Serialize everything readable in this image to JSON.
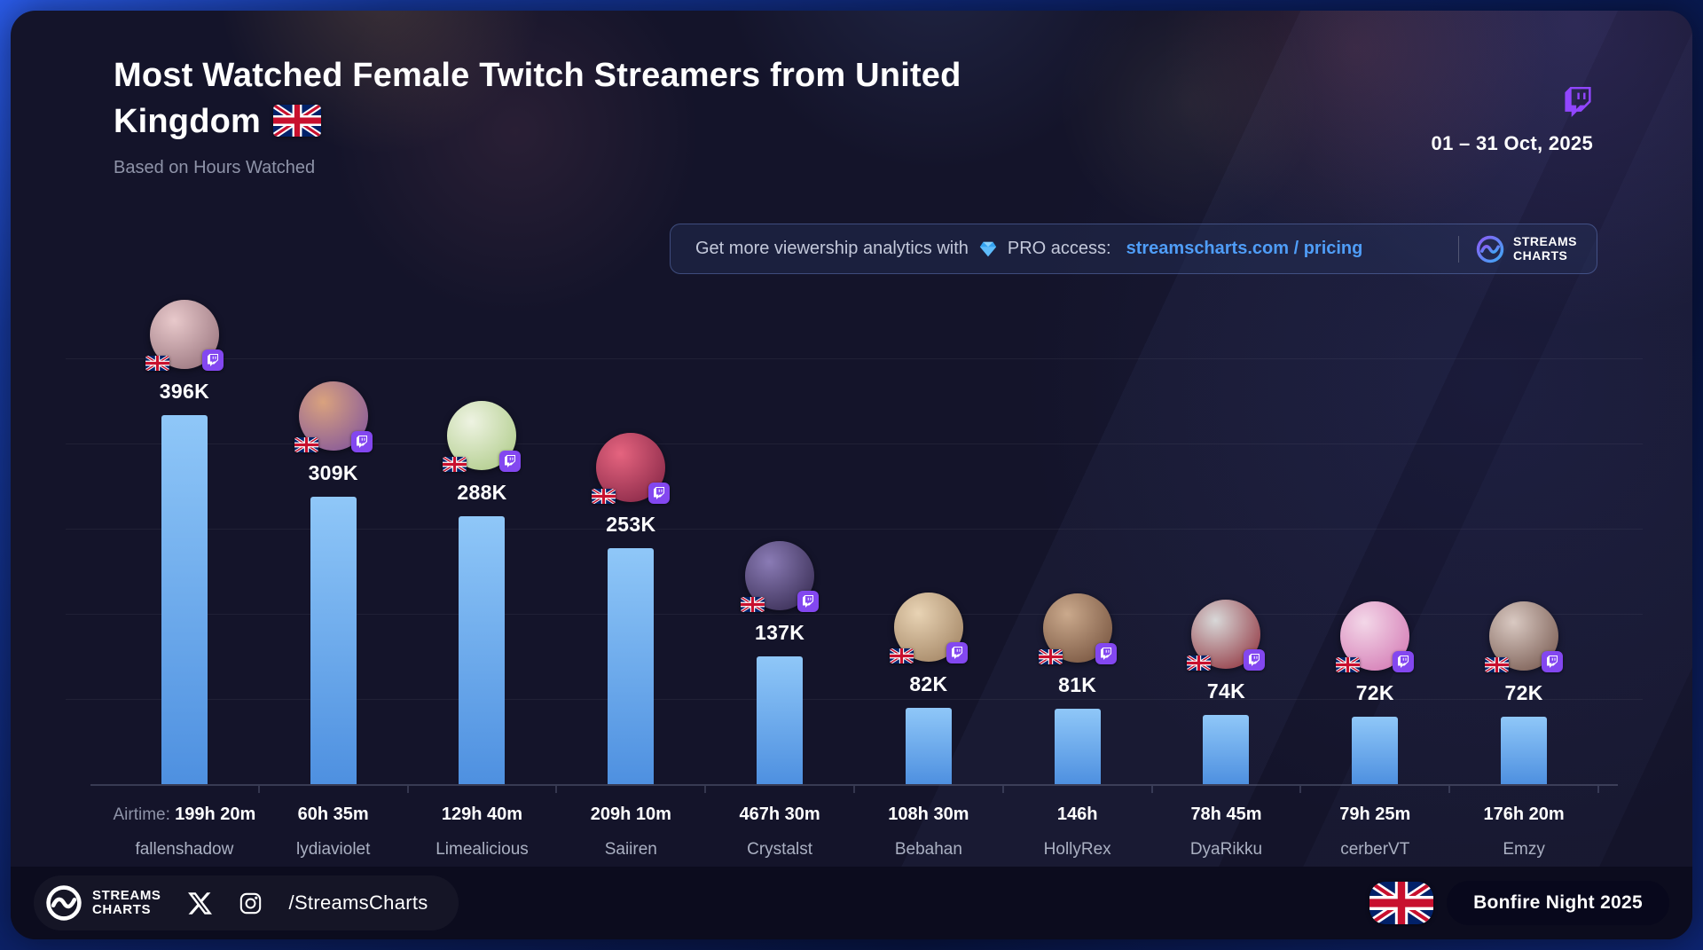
{
  "header": {
    "title": "Most Watched Female Twitch Streamers from United Kingdom",
    "subtitle": "Based on Hours Watched",
    "date_range": "01 – 31 Oct, 2025"
  },
  "promo": {
    "lead_text": "Get more viewership analytics with",
    "pro_text": "PRO access:",
    "link_label": "streamscharts.com / pricing",
    "brand_top": "STREAMS",
    "brand_bottom": "CHARTS"
  },
  "chart_data": {
    "type": "bar",
    "title": "Most Watched Female Twitch Streamers from United Kingdom",
    "subtitle": "Based on Hours Watched",
    "period": "01 – 31 Oct, 2025",
    "metric": "Hours Watched",
    "ylim": [
      0,
      400
    ],
    "grid": true,
    "categories": [
      "fallenshadow",
      "lydiaviolet",
      "Limealicious",
      "Saiiren",
      "Crystalst",
      "Bebahan",
      "HollyRex",
      "DyaRikku",
      "cerberVT",
      "Emzy"
    ],
    "values_k": [
      396,
      309,
      288,
      253,
      137,
      82,
      81,
      74,
      72,
      72
    ],
    "value_labels": [
      "396K",
      "309K",
      "288K",
      "253K",
      "137K",
      "82K",
      "81K",
      "74K",
      "72K",
      "72K"
    ],
    "airtime_prefix": "Airtime:",
    "airtimes": [
      "199h 20m",
      "60h 35m",
      "129h 40m",
      "209h 10m",
      "467h 30m",
      "108h 30m",
      "146h",
      "78h 45m",
      "79h 25m",
      "176h 20m"
    ],
    "avatar_colors": [
      [
        "#e8c9cb",
        "#8f6a74"
      ],
      [
        "#d9a27e",
        "#7a4e9e"
      ],
      [
        "#eef3e2",
        "#a8c77f"
      ],
      [
        "#e5647f",
        "#7c2040"
      ],
      [
        "#8a7bb5",
        "#2e2347"
      ],
      [
        "#e8d3b4",
        "#9a7b5a"
      ],
      [
        "#caa98c",
        "#6d4a36"
      ],
      [
        "#d8d8d8",
        "#8a2430"
      ],
      [
        "#f3d7e8",
        "#d06fae"
      ],
      [
        "#d9c9c2",
        "#6e4f45"
      ]
    ]
  },
  "footer": {
    "brand_top": "STREAMS",
    "brand_bottom": "CHARTS",
    "social_handle": "/StreamsCharts",
    "event_label": "Bonfire Night 2025"
  },
  "colors": {
    "bar_top": "#8fc7f8",
    "bar_bottom": "#4e90e0",
    "link": "#4f9df7",
    "twitch_purple": "#9146FF",
    "card_bg": "#14142a"
  }
}
